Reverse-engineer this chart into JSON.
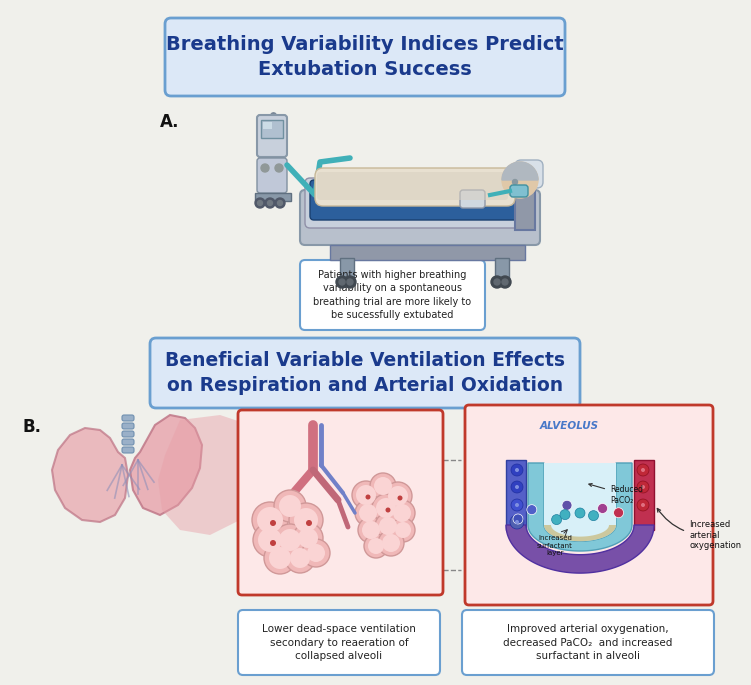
{
  "bg_color": "#f0f0eb",
  "title1": "Breathing Variability Indices Predict\nExtubation Success",
  "title1_color": "#1a3a8c",
  "title1_bg": "#dce8f7",
  "title1_border": "#6a9fd0",
  "title2": "Beneficial Variable Ventilation Effects\non Respiration and Arterial Oxidation",
  "title2_color": "#1a3a8c",
  "title2_bg": "#dce8f7",
  "title2_border": "#6a9fd0",
  "label_A": "A.",
  "label_B": "B.",
  "label_color": "#111111",
  "text_box1": "Patients with higher breathing\nvariability on a spontaneous\nbreathing trial are more likely to\nbe sucessfully extubated",
  "text_box1_border": "#6a9fd0",
  "text_box1_bg": "#ffffff",
  "text_box2": "Lower dead-space ventilation\nsecondary to reaeration of\ncollapsed alveoli",
  "text_box2_border": "#6a9fd0",
  "text_box2_bg": "#ffffff",
  "text_box3": "Improved arterial oxygenation,\ndecreased PaCO₂  and increased\nsurfactant in alveoli",
  "text_box3_border": "#6a9fd0",
  "text_box3_bg": "#ffffff",
  "red_box_border": "#c0392b",
  "red_box_bg": "#fde8e8"
}
